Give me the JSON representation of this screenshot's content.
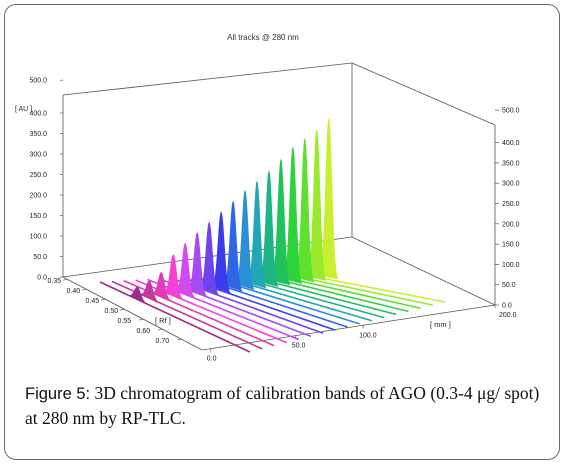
{
  "chart_data": {
    "type": "area",
    "title": "All tracks @ 280 nm",
    "y_unit_label": "[ AU ]",
    "y_ticks": [
      "0.0",
      "50.0",
      "100.0",
      "150.0",
      "200.0",
      "250.0",
      "300.0",
      "350.0",
      "400.0",
      "500.0"
    ],
    "right_axis_ticks": [
      "0.0",
      "50.0",
      "100.0",
      "150.0",
      "200.0",
      "250.0",
      "300.0",
      "350.0",
      "400.0",
      "500.0"
    ],
    "rf_label": "[ Rf ]",
    "rf_ticks": [
      "0.35",
      "0.40",
      "0.45",
      "0.50",
      "0.55",
      "0.60",
      "0.70"
    ],
    "mm_label": "[ mm ]",
    "mm_ticks": [
      "0.0",
      "50.0",
      "100.0",
      "200.0"
    ],
    "ylim": [
      0,
      500
    ],
    "peak_rf": 0.55,
    "tracks": [
      {
        "track": 1,
        "peak_au": 30,
        "color": "#9b2d8a"
      },
      {
        "track": 2,
        "peak_au": 42,
        "color": "#c0399e"
      },
      {
        "track": 3,
        "peak_au": 60,
        "color": "#e03bb8"
      },
      {
        "track": 4,
        "peak_au": 100,
        "color": "#f640d8"
      },
      {
        "track": 5,
        "peak_au": 125,
        "color": "#d449f0"
      },
      {
        "track": 6,
        "peak_au": 148,
        "color": "#a64bf2"
      },
      {
        "track": 7,
        "peak_au": 170,
        "color": "#6f43ee"
      },
      {
        "track": 8,
        "peak_au": 192,
        "color": "#3b3bea"
      },
      {
        "track": 9,
        "peak_au": 215,
        "color": "#2f66e4"
      },
      {
        "track": 10,
        "peak_au": 238,
        "color": "#2b8fd7"
      },
      {
        "track": 11,
        "peak_au": 258,
        "color": "#22a8b5"
      },
      {
        "track": 12,
        "peak_au": 280,
        "color": "#1eb486"
      },
      {
        "track": 13,
        "peak_au": 305,
        "color": "#21c25a"
      },
      {
        "track": 14,
        "peak_au": 332,
        "color": "#2ed23b"
      },
      {
        "track": 15,
        "peak_au": 350,
        "color": "#5fe02e"
      },
      {
        "track": 16,
        "peak_au": 368,
        "color": "#99ea2e"
      },
      {
        "track": 17,
        "peak_au": 392,
        "color": "#c8f030"
      }
    ]
  },
  "caption": {
    "label": "Figure 5:",
    "text": " 3D chromatogram of calibration bands of AGO (0.3-4 μg/ spot) at 280 nm by RP-TLC."
  }
}
